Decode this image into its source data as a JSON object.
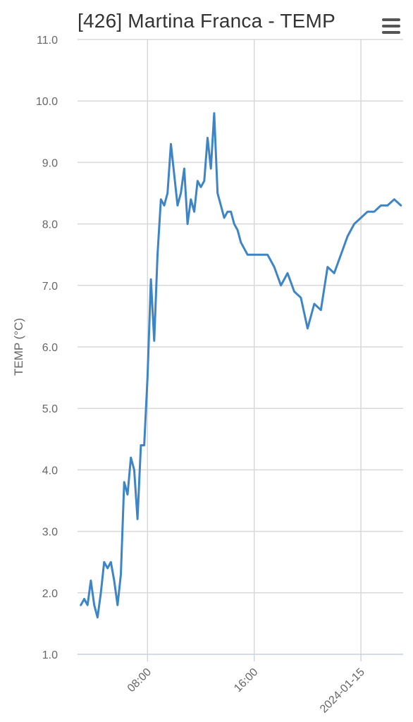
{
  "title": "[426] Martina Franca - TEMP",
  "menu_icon": "hamburger-menu-icon",
  "chart_data": {
    "type": "line",
    "title": "[426] Martina Franca - TEMP",
    "xlabel": "",
    "ylabel": "TEMP (°C)",
    "ylim": [
      1.0,
      11.0
    ],
    "yticks": [
      "1.0",
      "2.0",
      "3.0",
      "4.0",
      "5.0",
      "6.0",
      "7.0",
      "8.0",
      "9.0",
      "10.0",
      "11.0"
    ],
    "xlim": [
      "2024-01-14 02:45",
      "2024-01-15 03:10"
    ],
    "xticks": [
      {
        "label": "08:00",
        "t": "2024-01-14 08:00"
      },
      {
        "label": "16:00",
        "t": "2024-01-14 16:00"
      },
      {
        "label": "2024-01-15",
        "t": "2024-01-15 00:00"
      }
    ],
    "grid": true,
    "line_color": "#3d85c6",
    "series": [
      {
        "x": [
          "2024-01-14 03:00",
          "2024-01-14 03:15",
          "2024-01-14 03:30",
          "2024-01-14 03:45",
          "2024-01-14 04:00",
          "2024-01-14 04:15",
          "2024-01-14 04:30",
          "2024-01-14 04:45",
          "2024-01-14 05:00",
          "2024-01-14 05:15",
          "2024-01-14 05:30",
          "2024-01-14 05:45",
          "2024-01-14 06:00",
          "2024-01-14 06:15",
          "2024-01-14 06:30",
          "2024-01-14 06:45",
          "2024-01-14 07:00",
          "2024-01-14 07:15",
          "2024-01-14 07:30",
          "2024-01-14 07:45",
          "2024-01-14 08:00",
          "2024-01-14 08:15",
          "2024-01-14 08:30",
          "2024-01-14 08:45",
          "2024-01-14 09:00",
          "2024-01-14 09:15",
          "2024-01-14 09:30",
          "2024-01-14 09:45",
          "2024-01-14 10:00",
          "2024-01-14 10:15",
          "2024-01-14 10:30",
          "2024-01-14 10:45",
          "2024-01-14 11:00",
          "2024-01-14 11:15",
          "2024-01-14 11:30",
          "2024-01-14 11:45",
          "2024-01-14 12:00",
          "2024-01-14 12:15",
          "2024-01-14 12:30",
          "2024-01-14 12:45",
          "2024-01-14 13:00",
          "2024-01-14 13:15",
          "2024-01-14 13:30",
          "2024-01-14 13:45",
          "2024-01-14 14:00",
          "2024-01-14 14:15",
          "2024-01-14 14:30",
          "2024-01-14 14:45",
          "2024-01-14 15:00",
          "2024-01-14 15:30",
          "2024-01-14 16:00",
          "2024-01-14 16:30",
          "2024-01-14 17:00",
          "2024-01-14 17:30",
          "2024-01-14 18:00",
          "2024-01-14 18:30",
          "2024-01-14 19:00",
          "2024-01-14 19:30",
          "2024-01-14 20:00",
          "2024-01-14 20:30",
          "2024-01-14 21:00",
          "2024-01-14 21:30",
          "2024-01-14 22:00",
          "2024-01-14 22:30",
          "2024-01-14 23:00",
          "2024-01-14 23:30",
          "2024-01-15 00:00",
          "2024-01-15 00:30",
          "2024-01-15 01:00",
          "2024-01-15 01:30",
          "2024-01-15 02:00",
          "2024-01-15 02:30",
          "2024-01-15 03:00"
        ],
        "y": [
          1.8,
          1.9,
          1.8,
          2.2,
          1.8,
          1.6,
          2.0,
          2.5,
          2.4,
          2.5,
          2.2,
          1.8,
          2.3,
          3.8,
          3.6,
          4.2,
          4.0,
          3.2,
          4.4,
          4.4,
          5.5,
          7.1,
          6.1,
          7.5,
          8.4,
          8.3,
          8.5,
          9.3,
          8.8,
          8.3,
          8.5,
          8.9,
          8.0,
          8.4,
          8.2,
          8.7,
          8.6,
          8.7,
          9.4,
          8.9,
          9.8,
          8.5,
          8.3,
          8.1,
          8.2,
          8.2,
          8.0,
          7.9,
          7.7,
          7.5,
          7.5,
          7.5,
          7.5,
          7.3,
          7.0,
          7.2,
          6.9,
          6.8,
          6.3,
          6.7,
          6.6,
          7.3,
          7.2,
          7.5,
          7.8,
          8.0,
          8.1,
          8.2,
          8.2,
          8.3,
          8.3,
          8.4,
          8.3
        ]
      }
    ]
  }
}
